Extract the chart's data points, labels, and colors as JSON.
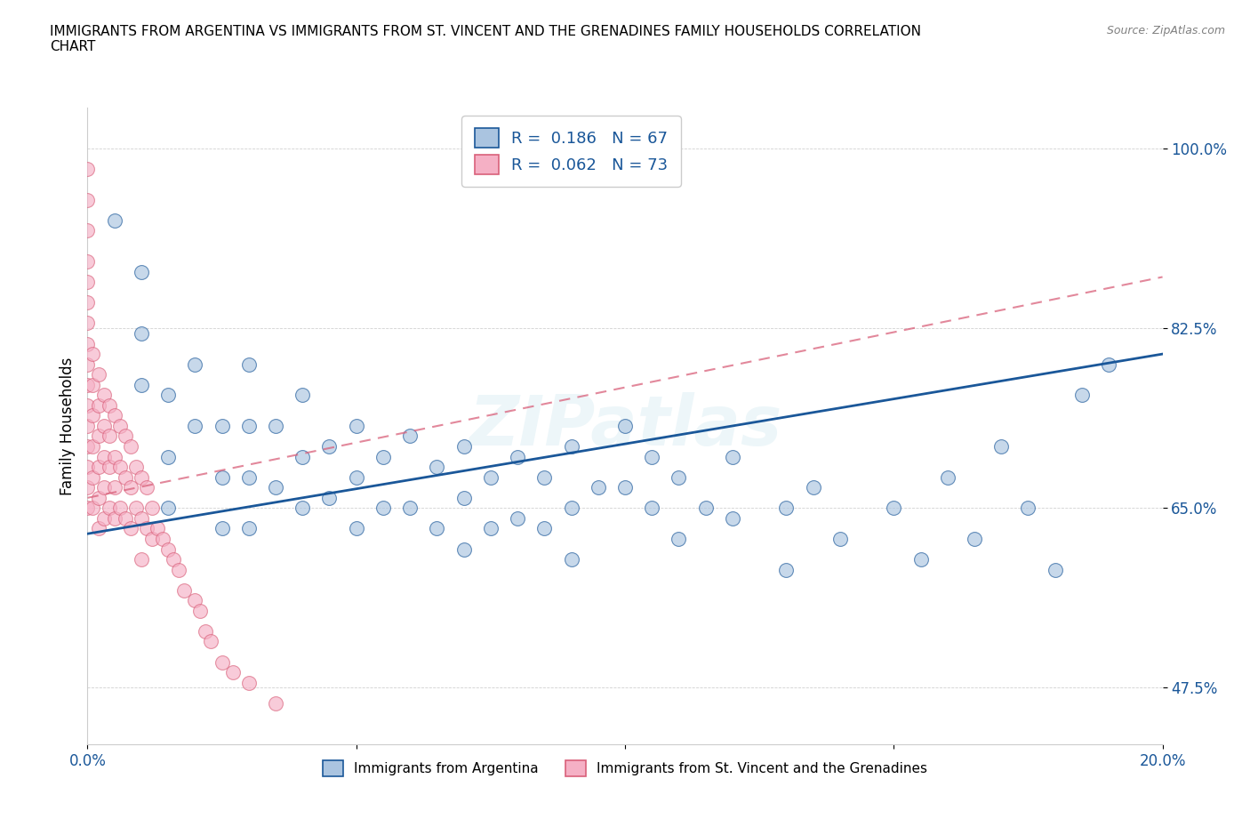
{
  "title": "IMMIGRANTS FROM ARGENTINA VS IMMIGRANTS FROM ST. VINCENT AND THE GRENADINES FAMILY HOUSEHOLDS CORRELATION\nCHART",
  "source": "Source: ZipAtlas.com",
  "ylabel": "Family Households",
  "xlim": [
    0.0,
    0.2
  ],
  "ylim": [
    0.42,
    1.04
  ],
  "ytick_positions": [
    0.475,
    0.65,
    0.825,
    1.0
  ],
  "ytick_labels": [
    "47.5%",
    "65.0%",
    "82.5%",
    "100.0%"
  ],
  "argentina_color": "#aac4e0",
  "argentina_line_color": "#1a5799",
  "svg_color": "#f5b0c5",
  "svg_line_color": "#d9607a",
  "R_argentina": 0.186,
  "N_argentina": 67,
  "R_svg": 0.062,
  "N_svg": 73,
  "legend_label_argentina": "Immigrants from Argentina",
  "legend_label_svg": "Immigrants from St. Vincent and the Grenadines",
  "watermark": "ZIPatlas",
  "argentina_x": [
    0.005,
    0.01,
    0.01,
    0.01,
    0.015,
    0.015,
    0.015,
    0.02,
    0.02,
    0.025,
    0.025,
    0.025,
    0.03,
    0.03,
    0.03,
    0.03,
    0.035,
    0.035,
    0.04,
    0.04,
    0.04,
    0.045,
    0.045,
    0.05,
    0.05,
    0.05,
    0.055,
    0.055,
    0.06,
    0.06,
    0.065,
    0.065,
    0.07,
    0.07,
    0.07,
    0.075,
    0.075,
    0.08,
    0.08,
    0.085,
    0.085,
    0.09,
    0.09,
    0.09,
    0.095,
    0.1,
    0.1,
    0.105,
    0.105,
    0.11,
    0.11,
    0.115,
    0.12,
    0.12,
    0.13,
    0.13,
    0.135,
    0.14,
    0.15,
    0.155,
    0.16,
    0.165,
    0.17,
    0.175,
    0.18,
    0.185,
    0.19
  ],
  "argentina_y": [
    0.93,
    0.88,
    0.82,
    0.77,
    0.76,
    0.7,
    0.65,
    0.79,
    0.73,
    0.73,
    0.68,
    0.63,
    0.79,
    0.73,
    0.68,
    0.63,
    0.73,
    0.67,
    0.76,
    0.7,
    0.65,
    0.71,
    0.66,
    0.73,
    0.68,
    0.63,
    0.7,
    0.65,
    0.72,
    0.65,
    0.69,
    0.63,
    0.71,
    0.66,
    0.61,
    0.68,
    0.63,
    0.7,
    0.64,
    0.68,
    0.63,
    0.71,
    0.65,
    0.6,
    0.67,
    0.73,
    0.67,
    0.7,
    0.65,
    0.68,
    0.62,
    0.65,
    0.7,
    0.64,
    0.65,
    0.59,
    0.67,
    0.62,
    0.65,
    0.6,
    0.68,
    0.62,
    0.71,
    0.65,
    0.59,
    0.76,
    0.79
  ],
  "svg_x": [
    0.0,
    0.0,
    0.0,
    0.0,
    0.0,
    0.0,
    0.0,
    0.0,
    0.0,
    0.0,
    0.0,
    0.0,
    0.0,
    0.0,
    0.0,
    0.0,
    0.001,
    0.001,
    0.001,
    0.001,
    0.001,
    0.001,
    0.002,
    0.002,
    0.002,
    0.002,
    0.002,
    0.002,
    0.003,
    0.003,
    0.003,
    0.003,
    0.003,
    0.004,
    0.004,
    0.004,
    0.004,
    0.005,
    0.005,
    0.005,
    0.005,
    0.006,
    0.006,
    0.006,
    0.007,
    0.007,
    0.007,
    0.008,
    0.008,
    0.008,
    0.009,
    0.009,
    0.01,
    0.01,
    0.01,
    0.011,
    0.011,
    0.012,
    0.012,
    0.013,
    0.014,
    0.015,
    0.016,
    0.017,
    0.018,
    0.02,
    0.021,
    0.022,
    0.023,
    0.025,
    0.027,
    0.03,
    0.035
  ],
  "svg_y": [
    0.98,
    0.95,
    0.92,
    0.89,
    0.87,
    0.85,
    0.83,
    0.81,
    0.79,
    0.77,
    0.75,
    0.73,
    0.71,
    0.69,
    0.67,
    0.65,
    0.8,
    0.77,
    0.74,
    0.71,
    0.68,
    0.65,
    0.78,
    0.75,
    0.72,
    0.69,
    0.66,
    0.63,
    0.76,
    0.73,
    0.7,
    0.67,
    0.64,
    0.75,
    0.72,
    0.69,
    0.65,
    0.74,
    0.7,
    0.67,
    0.64,
    0.73,
    0.69,
    0.65,
    0.72,
    0.68,
    0.64,
    0.71,
    0.67,
    0.63,
    0.69,
    0.65,
    0.68,
    0.64,
    0.6,
    0.67,
    0.63,
    0.65,
    0.62,
    0.63,
    0.62,
    0.61,
    0.6,
    0.59,
    0.57,
    0.56,
    0.55,
    0.53,
    0.52,
    0.5,
    0.49,
    0.48,
    0.46
  ]
}
